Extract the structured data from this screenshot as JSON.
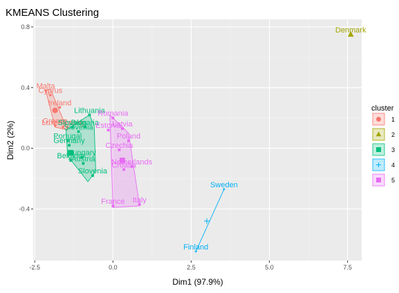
{
  "chart_data": {
    "type": "scatter",
    "title": "KMEANS Clustering",
    "xlabel": "Dim1 (97.9%)",
    "ylabel": "Dim2 (2%)",
    "xlim": [
      -2.55,
      7.95
    ],
    "ylim": [
      -0.74,
      0.85
    ],
    "xticks": [
      -2.5,
      0.0,
      2.5,
      5.0,
      7.5
    ],
    "xtick_labels": [
      "-2.5",
      "0.0",
      "2.5",
      "5.0",
      "7.5"
    ],
    "yticks": [
      -0.4,
      0.0,
      0.4,
      0.8
    ],
    "ytick_labels": [
      "-0.4",
      "0.0",
      "0.4",
      "0.8"
    ],
    "grid": true,
    "legend_title": "cluster",
    "legend_position": "right",
    "clusters": [
      {
        "name": "1",
        "color": "#F8766D",
        "shape": "circle",
        "centroid": {
          "x": -1.85,
          "y": 0.25
        },
        "hull": [
          [
            -2.15,
            0.38
          ],
          [
            -2.0,
            0.39
          ],
          [
            -1.45,
            0.12
          ],
          [
            -1.85,
            0.14
          ]
        ],
        "points": [
          {
            "x": -2.15,
            "y": 0.38,
            "label": "Malta"
          },
          {
            "x": -2.0,
            "y": 0.35,
            "label": "Cyprus"
          },
          {
            "x": -1.7,
            "y": 0.27,
            "label": "Ireland"
          },
          {
            "x": -1.85,
            "y": 0.15,
            "label": "Greece"
          },
          {
            "x": -1.6,
            "y": 0.14,
            "label": "Luxembourg"
          },
          {
            "x": -1.45,
            "y": 0.14,
            "label": "Spain"
          }
        ]
      },
      {
        "name": "2",
        "color": "#A3A500",
        "shape": "triangle",
        "centroid": {
          "x": 7.6,
          "y": 0.75
        },
        "hull": [],
        "points": [
          {
            "x": 7.6,
            "y": 0.75,
            "label": "Denmark"
          }
        ]
      },
      {
        "name": "3",
        "color": "#00BF7D",
        "shape": "square",
        "centroid": {
          "x": -1.35,
          "y": -0.03
        },
        "hull": [
          [
            -1.5,
            0.12
          ],
          [
            -0.75,
            0.22
          ],
          [
            -0.6,
            0.15
          ],
          [
            -0.55,
            -0.15
          ],
          [
            -0.8,
            -0.22
          ],
          [
            -1.45,
            -0.05
          ]
        ],
        "points": [
          {
            "x": -0.75,
            "y": 0.22,
            "label": "Lithuania"
          },
          {
            "x": -1.3,
            "y": 0.14,
            "label": "Slovakia"
          },
          {
            "x": -0.9,
            "y": 0.14,
            "label": "Bulgaria"
          },
          {
            "x": -1.1,
            "y": 0.11,
            "label": "Slovenia"
          },
          {
            "x": -1.45,
            "y": 0.05,
            "label": "Portugal"
          },
          {
            "x": -1.4,
            "y": 0.02,
            "label": "Germany"
          },
          {
            "x": -1.0,
            "y": -0.06,
            "label": "Hungary"
          },
          {
            "x": -1.35,
            "y": -0.08,
            "label": "Belgium"
          },
          {
            "x": -0.95,
            "y": -0.1,
            "label": "Austria"
          },
          {
            "x": -0.65,
            "y": -0.18,
            "label": "Slovenia"
          }
        ]
      },
      {
        "name": "4",
        "color": "#00B0F6",
        "shape": "cross",
        "centroid": {
          "x": 3.0,
          "y": -0.48
        },
        "hull": [
          [
            2.65,
            -0.68
          ],
          [
            3.55,
            -0.27
          ]
        ],
        "points": [
          {
            "x": 3.55,
            "y": -0.27,
            "label": "Sweden"
          },
          {
            "x": 2.65,
            "y": -0.68,
            "label": "Finland"
          }
        ]
      },
      {
        "name": "5",
        "color": "#E76BF3",
        "shape": "square",
        "centroid": {
          "x": 0.3,
          "y": -0.08
        },
        "hull": [
          [
            -0.1,
            0.22
          ],
          [
            0.5,
            0.1
          ],
          [
            0.85,
            -0.38
          ],
          [
            0.0,
            -0.39
          ]
        ],
        "points": [
          {
            "x": 0.0,
            "y": 0.2,
            "label": "Romania"
          },
          {
            "x": 0.3,
            "y": 0.13,
            "label": "Latvia"
          },
          {
            "x": -0.15,
            "y": 0.12,
            "label": "Estonia"
          },
          {
            "x": 0.5,
            "y": 0.05,
            "label": "Poland"
          },
          {
            "x": 0.2,
            "y": -0.01,
            "label": "Czechia"
          },
          {
            "x": 0.6,
            "y": -0.12,
            "label": "Netherlands"
          },
          {
            "x": 0.35,
            "y": -0.14,
            "label": "Croatia"
          },
          {
            "x": 0.0,
            "y": -0.38,
            "label": "France"
          },
          {
            "x": 0.85,
            "y": -0.37,
            "label": "Italy"
          }
        ]
      }
    ]
  }
}
